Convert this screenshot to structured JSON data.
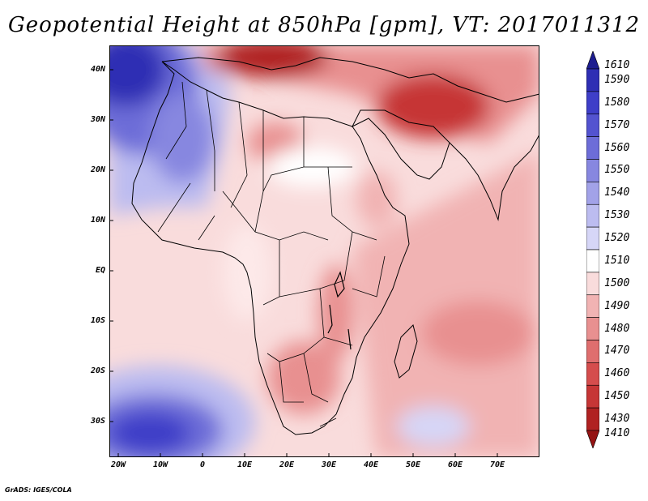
{
  "title": "Geopotential Height at 850hPa [gpm], VT: 2017011312",
  "footer": "GrADS: IGES/COLA",
  "map": {
    "projection": "latlon",
    "lon_range": [
      -22,
      80
    ],
    "lat_range": [
      -36,
      45
    ],
    "y_ticks": [
      "40N",
      "30N",
      "20N",
      "10N",
      "EQ",
      "10S",
      "20S",
      "30S"
    ],
    "x_ticks": [
      "20W",
      "10W",
      "0",
      "10E",
      "20E",
      "30E",
      "40E",
      "50E",
      "60E",
      "70E"
    ]
  },
  "colorbar": {
    "levels": [
      "1610",
      "1590",
      "1580",
      "1570",
      "1560",
      "1550",
      "1540",
      "1530",
      "1520",
      "1510",
      "1500",
      "1490",
      "1480",
      "1470",
      "1460",
      "1450",
      "1430",
      "1410"
    ],
    "colors": [
      "#1d1d8f",
      "#2e2eb4",
      "#3e3ec8",
      "#5353d0",
      "#6d6dd8",
      "#8787e0",
      "#a2a2e8",
      "#bcbcf0",
      "#d6d6f7",
      "#ffffff",
      "#f9dcdc",
      "#f1b3b3",
      "#e89090",
      "#df6e6e",
      "#d54d4d",
      "#c63636",
      "#b02222",
      "#941313"
    ]
  }
}
